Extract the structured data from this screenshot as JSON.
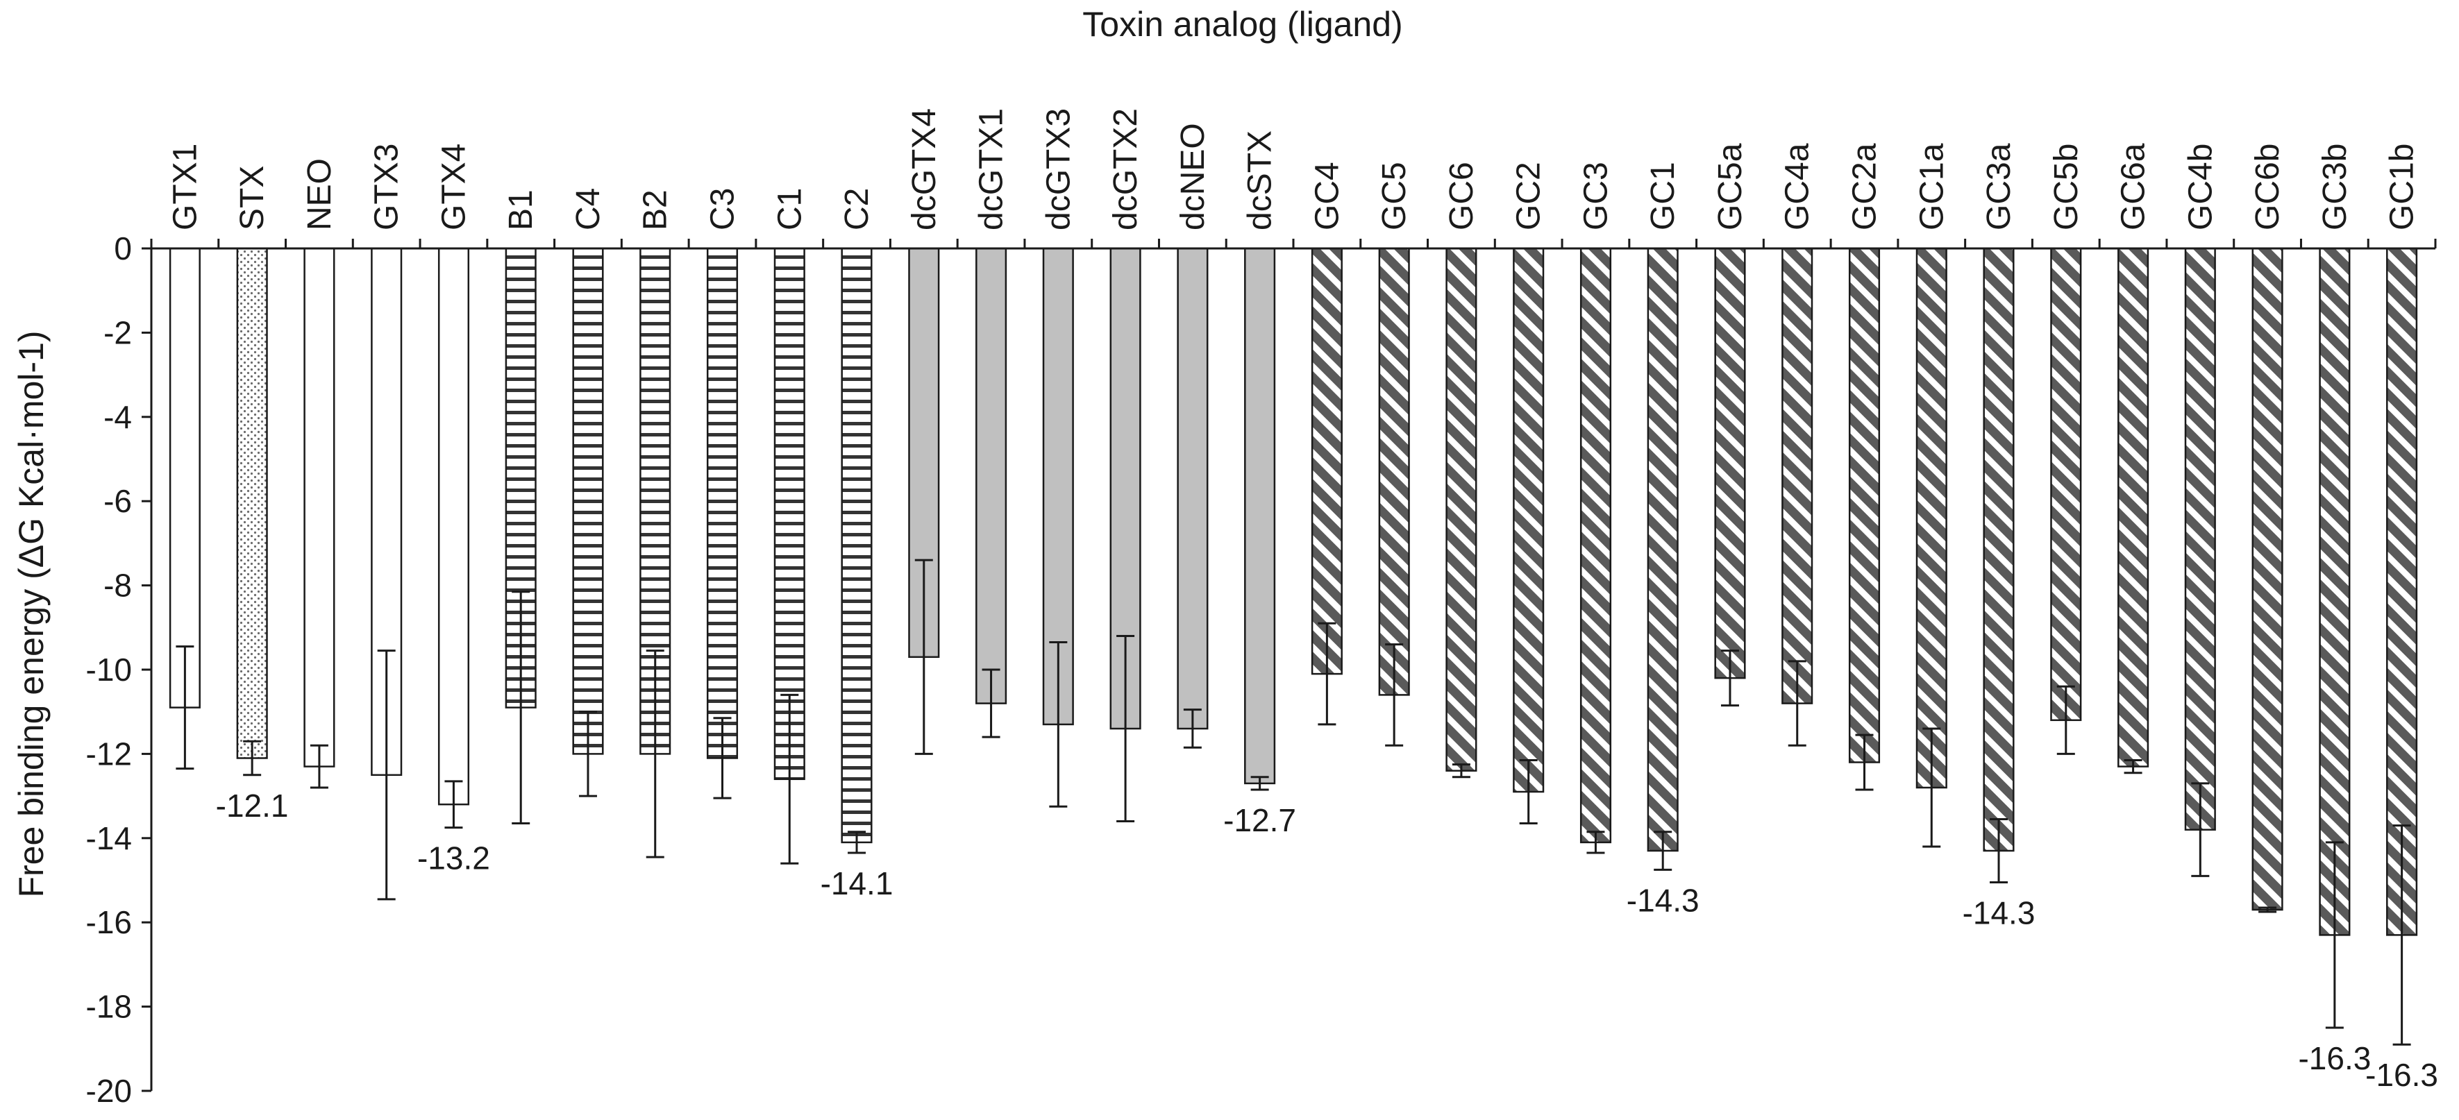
{
  "chart_data": {
    "type": "bar",
    "title": "Toxin analog (ligand)",
    "xlabel": "",
    "ylabel": "Free binding energy (ΔG Kcal·mol-1)",
    "ylim": [
      -20,
      0
    ],
    "yticks": [
      0,
      -2,
      -4,
      -6,
      -8,
      -10,
      -12,
      -14,
      -16,
      -18,
      -20
    ],
    "ytick_labels": [
      "0",
      "-2",
      "-4",
      "-6",
      "-8",
      "-10",
      "-12",
      "-14",
      "-16",
      "-18",
      "-20"
    ],
    "category_axis_position": "top",
    "grid": false,
    "legend": "none",
    "categories": [
      "GTX1",
      "STX",
      "NEO",
      "GTX3",
      "GTX4",
      "B1",
      "C4",
      "B2",
      "C3",
      "C1",
      "C2",
      "dcGTX4",
      "dcGTX1",
      "dcGTX3",
      "dcGTX2",
      "dcNEO",
      "dcSTX",
      "GC4",
      "GC5",
      "GC6",
      "GC2",
      "GC3",
      "GC1",
      "GC5a",
      "GC4a",
      "GC2a",
      "GC1a",
      "GC3a",
      "GC5b",
      "GC6a",
      "GC4b",
      "GC6b",
      "GC3b",
      "GC1b"
    ],
    "values": [
      -10.9,
      -12.1,
      -12.3,
      -12.5,
      -13.2,
      -10.9,
      -12.0,
      -12.0,
      -12.1,
      -12.6,
      -14.1,
      -9.7,
      -10.8,
      -11.3,
      -11.4,
      -11.4,
      -12.7,
      -10.1,
      -10.6,
      -12.4,
      -12.9,
      -14.1,
      -14.3,
      -10.2,
      -10.8,
      -12.2,
      -12.8,
      -14.3,
      -11.2,
      -12.3,
      -13.8,
      -15.7,
      -16.3,
      -16.3
    ],
    "errors": [
      1.45,
      0.4,
      0.5,
      2.95,
      0.55,
      2.75,
      1.0,
      2.45,
      0.95,
      2.0,
      0.25,
      2.3,
      0.8,
      1.95,
      2.2,
      0.45,
      0.15,
      1.2,
      1.2,
      0.15,
      0.75,
      0.25,
      0.45,
      0.65,
      1.0,
      0.65,
      1.4,
      0.75,
      0.8,
      0.15,
      1.1,
      0.05,
      2.2,
      2.6
    ],
    "groups": [
      {
        "name": "",
        "members": [
          0,
          2,
          3,
          4
        ],
        "pattern": "blank",
        "color": "#ffffff"
      },
      {
        "name": "",
        "members": [
          1
        ],
        "pattern": "dots",
        "color": "#ffffff"
      },
      {
        "name": "",
        "members": [
          5,
          6,
          7,
          8,
          9,
          10
        ],
        "pattern": "horizontal-stripes",
        "color": "#ffffff"
      },
      {
        "name": "",
        "members": [
          11,
          12,
          13,
          14,
          15,
          16
        ],
        "pattern": "solid",
        "color": "#c0c0c0"
      },
      {
        "name": "",
        "members": [
          17,
          18,
          19,
          20,
          21,
          22,
          23,
          24,
          25,
          26,
          27,
          28,
          29,
          30,
          31,
          32,
          33
        ],
        "pattern": "diagonal-stripes",
        "color": "#595959"
      }
    ],
    "annotations": [
      {
        "category": "STX",
        "text": "-12.1"
      },
      {
        "category": "GTX4",
        "text": "-13.2"
      },
      {
        "category": "C2",
        "text": "-14.1"
      },
      {
        "category": "dcSTX",
        "text": "-12.7"
      },
      {
        "category": "GC1",
        "text": "-14.3"
      },
      {
        "category": "GC3a",
        "text": "-14.3"
      },
      {
        "category": "GC3b",
        "text": "-16.3"
      },
      {
        "category": "GC1b",
        "text": "-16.3"
      }
    ]
  }
}
